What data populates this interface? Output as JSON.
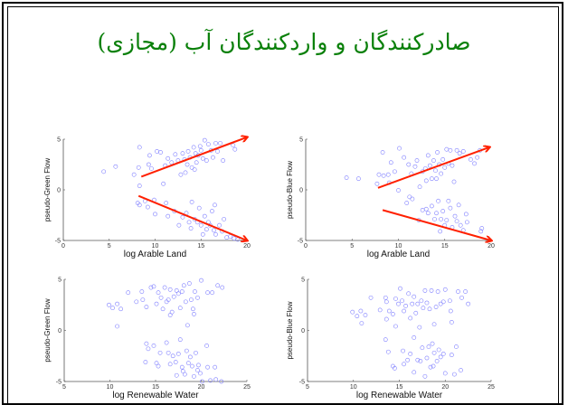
{
  "slide": {
    "title": "صادرکنندگان و واردکنندگان آب (مجازی)",
    "title_color": "#0a800a"
  },
  "chart_data": [
    {
      "type": "scatter",
      "xlabel": "log Arable Land",
      "ylabel": "pseudo-Green Flow",
      "xlim": [
        0,
        20
      ],
      "ylim": [
        -5,
        5
      ],
      "xticks": [
        0,
        5,
        10,
        15,
        20
      ],
      "yticks": [
        -5,
        0,
        5
      ],
      "marker_color": "#8080ff",
      "points": [
        [
          4.4,
          1.8
        ],
        [
          5.7,
          2.3
        ],
        [
          7.7,
          1.5
        ],
        [
          8.3,
          4.2
        ],
        [
          8.2,
          2.2
        ],
        [
          8.3,
          0.4
        ],
        [
          9.3,
          2.5
        ],
        [
          9.4,
          3.4
        ],
        [
          9.6,
          2.1
        ],
        [
          10.2,
          3.8
        ],
        [
          10.6,
          3.7
        ],
        [
          10.9,
          0.6
        ],
        [
          11.1,
          2.4
        ],
        [
          11.4,
          3.1
        ],
        [
          11.8,
          2.7
        ],
        [
          12.2,
          3.5
        ],
        [
          12.5,
          2.9
        ],
        [
          12.8,
          1.5
        ],
        [
          13,
          3.6
        ],
        [
          13.2,
          3
        ],
        [
          13.5,
          2.5
        ],
        [
          13.6,
          3.8
        ],
        [
          13.8,
          3.2
        ],
        [
          14,
          2.2
        ],
        [
          14.2,
          4.2
        ],
        [
          14.4,
          3.6
        ],
        [
          14.5,
          2.7
        ],
        [
          14.7,
          3.4
        ],
        [
          14.9,
          4.3
        ],
        [
          15,
          3.9
        ],
        [
          15.2,
          3.1
        ],
        [
          15.4,
          4.9
        ],
        [
          15.6,
          2.9
        ],
        [
          15.8,
          4.5
        ],
        [
          16.1,
          3.9
        ],
        [
          16.3,
          3.2
        ],
        [
          16.6,
          4.6
        ],
        [
          16.8,
          3.8
        ],
        [
          17.1,
          4.6
        ],
        [
          17.4,
          2.9
        ],
        [
          18.5,
          4.4
        ],
        [
          18.7,
          4
        ],
        [
          13.3,
          1.7
        ],
        [
          14.3,
          2.0
        ],
        [
          8.1,
          -1.3
        ],
        [
          8.3,
          -1.5
        ],
        [
          8.9,
          -1.1
        ],
        [
          9.2,
          -1.7
        ],
        [
          9.9,
          -1
        ],
        [
          10,
          -2.4
        ],
        [
          11.2,
          -1.3
        ],
        [
          11.4,
          -2.6
        ],
        [
          12.1,
          -2.1
        ],
        [
          12.6,
          -3.5
        ],
        [
          13,
          -2.7
        ],
        [
          13.4,
          -2.3
        ],
        [
          13.9,
          -3.8
        ],
        [
          14,
          -1.2
        ],
        [
          14.3,
          -2.9
        ],
        [
          14.6,
          -3.2
        ],
        [
          14.8,
          -1.8
        ],
        [
          15,
          -3.5
        ],
        [
          15.2,
          -4.4
        ],
        [
          15.4,
          -2.6
        ],
        [
          15.6,
          -3.9
        ],
        [
          15.8,
          -3.2
        ],
        [
          16,
          -3.5
        ],
        [
          16.2,
          -2.1
        ],
        [
          16.4,
          -4
        ],
        [
          16.6,
          -4.4
        ],
        [
          17,
          -3.5
        ],
        [
          17.3,
          -4.1
        ],
        [
          17.5,
          -2.9
        ],
        [
          17.8,
          -4.7
        ],
        [
          18.2,
          -4.6
        ],
        [
          18.6,
          -4.8
        ],
        [
          19,
          -4.9
        ],
        [
          16.5,
          -1.5
        ],
        [
          13.7,
          -3.2
        ]
      ],
      "arrows": [
        {
          "from": [
            8.5,
            1.3
          ],
          "to": [
            20,
            5.2
          ]
        },
        {
          "from": [
            8.2,
            -0.6
          ],
          "to": [
            20,
            -5
          ]
        }
      ],
      "arrow_color": "#ff2000"
    },
    {
      "type": "scatter",
      "xlabel": "log Arable Land",
      "ylabel": "pseudo-Blue Flow",
      "xlim": [
        0,
        20
      ],
      "ylim": [
        -5,
        5
      ],
      "xticks": [
        0,
        5,
        10,
        15,
        20
      ],
      "yticks": [
        -5,
        0,
        5
      ],
      "marker_color": "#8080ff",
      "points": [
        [
          4.4,
          1.2
        ],
        [
          5.7,
          1.1
        ],
        [
          7.7,
          0.6
        ],
        [
          7.9,
          1.5
        ],
        [
          8.3,
          3.7
        ],
        [
          8.4,
          1.4
        ],
        [
          8.9,
          1.5
        ],
        [
          9,
          0.7
        ],
        [
          9.2,
          2.7
        ],
        [
          9.6,
          1.8
        ],
        [
          10.1,
          4.1
        ],
        [
          10,
          -0.05
        ],
        [
          10.6,
          3.2
        ],
        [
          11.1,
          2.5
        ],
        [
          11.4,
          1.6
        ],
        [
          11.8,
          2.3
        ],
        [
          12,
          2.9
        ],
        [
          12.3,
          0.3
        ],
        [
          12.6,
          1.8
        ],
        [
          12.9,
          2.1
        ],
        [
          13.2,
          3.4
        ],
        [
          13.4,
          2.4
        ],
        [
          13.6,
          1.1
        ],
        [
          13.8,
          2.9
        ],
        [
          14,
          1.9
        ],
        [
          14.2,
          3.7
        ],
        [
          14.4,
          2.5
        ],
        [
          14.6,
          1.6
        ],
        [
          14.8,
          3
        ],
        [
          15,
          2.2
        ],
        [
          15.2,
          4
        ],
        [
          15.4,
          2.6
        ],
        [
          15.6,
          3.9
        ],
        [
          15.8,
          2.4
        ],
        [
          16,
          0.8
        ],
        [
          16.3,
          3.9
        ],
        [
          16.6,
          3.6
        ],
        [
          17,
          3.8
        ],
        [
          17.8,
          3
        ],
        [
          18.2,
          2.6
        ],
        [
          18.5,
          3.2
        ],
        [
          18.8,
          3.9
        ],
        [
          13,
          0.9
        ],
        [
          14.1,
          1.1
        ],
        [
          10.9,
          -1.3
        ],
        [
          11.2,
          -0.7
        ],
        [
          11.5,
          -0.9
        ],
        [
          12.6,
          -2
        ],
        [
          13,
          -1.9
        ],
        [
          13.2,
          -2.3
        ],
        [
          13.6,
          -1.6
        ],
        [
          13.9,
          -2.9
        ],
        [
          14.1,
          -2.3
        ],
        [
          14.3,
          -1.1
        ],
        [
          14.6,
          -2.9
        ],
        [
          14.8,
          -2.1
        ],
        [
          15,
          -3.5
        ],
        [
          15.2,
          -3
        ],
        [
          15.4,
          -1.1
        ],
        [
          15.6,
          -1.8
        ],
        [
          15.8,
          -3.7
        ],
        [
          16.1,
          -2.6
        ],
        [
          16.3,
          -3.1
        ],
        [
          16.5,
          -1.5
        ],
        [
          16.7,
          -3.5
        ],
        [
          17,
          -4
        ],
        [
          17.3,
          -2.4
        ],
        [
          17.4,
          -3.2
        ],
        [
          18.9,
          -4.1
        ],
        [
          19,
          -3.8
        ],
        [
          12.2,
          -3
        ],
        [
          14.5,
          -4.1
        ]
      ],
      "arrows": [
        {
          "from": [
            7.8,
            0.2
          ],
          "to": [
            19.8,
            4.2
          ]
        },
        {
          "from": [
            8.3,
            -2
          ],
          "to": [
            20,
            -5
          ]
        }
      ],
      "arrow_color": "#ff2000"
    },
    {
      "type": "scatter",
      "xlabel": "log Renewable Water",
      "ylabel": "pseudo-Green Flow",
      "xlim": [
        5,
        25
      ],
      "ylim": [
        -5,
        5
      ],
      "xticks": [
        5,
        10,
        15,
        20,
        25
      ],
      "yticks": [
        -5,
        0,
        5
      ],
      "marker_color": "#8080ff",
      "points": [
        [
          9.9,
          2.5
        ],
        [
          10.3,
          2.2
        ],
        [
          10.8,
          2.6
        ],
        [
          11.2,
          2.1
        ],
        [
          10.8,
          0.4
        ],
        [
          12,
          3.7
        ],
        [
          12.9,
          2.8
        ],
        [
          13.5,
          3.8
        ],
        [
          13.6,
          3
        ],
        [
          14,
          2.3
        ],
        [
          14.5,
          4.2
        ],
        [
          14.8,
          4.3
        ],
        [
          15.1,
          2.6
        ],
        [
          15.3,
          3.7
        ],
        [
          15.6,
          3.2
        ],
        [
          15.8,
          2.1
        ],
        [
          16,
          4.2
        ],
        [
          16.2,
          2.8
        ],
        [
          16.4,
          3
        ],
        [
          16.6,
          4
        ],
        [
          16.8,
          1.8
        ],
        [
          17,
          3.3
        ],
        [
          17.3,
          3.9
        ],
        [
          17.5,
          3.6
        ],
        [
          17.7,
          2.2
        ],
        [
          17.9,
          3.8
        ],
        [
          18.1,
          4.4
        ],
        [
          18.3,
          2.8
        ],
        [
          18.5,
          0.5
        ],
        [
          18.7,
          4.6
        ],
        [
          18.9,
          3
        ],
        [
          19.1,
          2.1
        ],
        [
          19.3,
          3.8
        ],
        [
          19.6,
          3.2
        ],
        [
          20,
          4.9
        ],
        [
          20.7,
          3.7
        ],
        [
          21.2,
          3.7
        ],
        [
          21.8,
          4.4
        ],
        [
          22.3,
          4.2
        ],
        [
          19.2,
          1.6
        ],
        [
          16.6,
          1.5
        ],
        [
          14,
          -1.3
        ],
        [
          14.2,
          -1.8
        ],
        [
          14.8,
          -1.5
        ],
        [
          13.9,
          -3.1
        ],
        [
          15.1,
          -3.2
        ],
        [
          15.3,
          -3.5
        ],
        [
          15.5,
          -2.2
        ],
        [
          16.2,
          -1.2
        ],
        [
          16.4,
          -2.2
        ],
        [
          16.6,
          -3.3
        ],
        [
          16.9,
          -2.5
        ],
        [
          17.2,
          -3.1
        ],
        [
          17.5,
          -2.3
        ],
        [
          17.7,
          -0.9
        ],
        [
          17.9,
          -3.6
        ],
        [
          18,
          -4
        ],
        [
          18.2,
          -4.3
        ],
        [
          18.4,
          -2
        ],
        [
          18.6,
          -3.2
        ],
        [
          18.8,
          -2.6
        ],
        [
          19,
          -3.5
        ],
        [
          19.2,
          -4.5
        ],
        [
          19.4,
          -2.2
        ],
        [
          19.6,
          -3.9
        ],
        [
          19.9,
          -4.2
        ],
        [
          20.1,
          -5
        ],
        [
          20.6,
          -1.5
        ],
        [
          20.7,
          -3.6
        ],
        [
          21,
          -4.9
        ],
        [
          21.5,
          -3.6
        ],
        [
          21.6,
          -4.8
        ],
        [
          22.2,
          -5
        ],
        [
          17.3,
          -4.4
        ],
        [
          19.7,
          -3.4
        ]
      ],
      "arrows": []
    },
    {
      "type": "scatter",
      "xlabel": "log Renewable Water",
      "ylabel": "pseudo-Blue Flow",
      "xlim": [
        5,
        25
      ],
      "ylim": [
        -5,
        5
      ],
      "xticks": [
        5,
        10,
        15,
        20,
        25
      ],
      "yticks": [
        -5,
        0,
        5
      ],
      "marker_color": "#8080ff",
      "points": [
        [
          9.9,
          1.8
        ],
        [
          10.4,
          1.4
        ],
        [
          10.8,
          1.9
        ],
        [
          10.9,
          0.7
        ],
        [
          11.3,
          1.5
        ],
        [
          11.9,
          3.2
        ],
        [
          12.9,
          2
        ],
        [
          13.5,
          3.2
        ],
        [
          13.6,
          2.8
        ],
        [
          13.6,
          1.1
        ],
        [
          13.9,
          1.9
        ],
        [
          14.3,
          1.6
        ],
        [
          14.6,
          3.1
        ],
        [
          14.6,
          0.4
        ],
        [
          14.9,
          2.6
        ],
        [
          15.1,
          4.1
        ],
        [
          15.3,
          2.9
        ],
        [
          15.5,
          1.9
        ],
        [
          15.7,
          2.4
        ],
        [
          16,
          3.6
        ],
        [
          16.2,
          1.2
        ],
        [
          16.4,
          2.6
        ],
        [
          16.6,
          3.3
        ],
        [
          16.8,
          1.7
        ],
        [
          17,
          2.6
        ],
        [
          17.2,
          0.3
        ],
        [
          17.4,
          2.9
        ],
        [
          17.6,
          2.2
        ],
        [
          17.8,
          3.9
        ],
        [
          18,
          2.7
        ],
        [
          18.3,
          2.1
        ],
        [
          18.5,
          3.9
        ],
        [
          18.8,
          0.6
        ],
        [
          19,
          2.3
        ],
        [
          19.2,
          3.8
        ],
        [
          19.5,
          2.6
        ],
        [
          19.8,
          2.8
        ],
        [
          20,
          4
        ],
        [
          20.5,
          2.9
        ],
        [
          20.7,
          0.8
        ],
        [
          21.4,
          3.8
        ],
        [
          21.8,
          3.2
        ],
        [
          22.2,
          3.8
        ],
        [
          22.5,
          2.6
        ],
        [
          20.6,
          1.9
        ],
        [
          13.5,
          -0.9
        ],
        [
          13.8,
          -2.1
        ],
        [
          14.3,
          -3.5
        ],
        [
          14.5,
          -3.7
        ],
        [
          15.4,
          -2
        ],
        [
          15.5,
          -3.3
        ],
        [
          15.9,
          -2.9
        ],
        [
          16.2,
          -2.3
        ],
        [
          16.6,
          -0.7
        ],
        [
          16.6,
          -4.1
        ],
        [
          17,
          -2.9
        ],
        [
          17.3,
          -3
        ],
        [
          17.5,
          -1.7
        ],
        [
          17.8,
          -4.5
        ],
        [
          18,
          -2.7
        ],
        [
          18.2,
          -1.6
        ],
        [
          18.4,
          -3.6
        ],
        [
          18.6,
          -1.3
        ],
        [
          18.8,
          -2.2
        ],
        [
          19.1,
          -3
        ],
        [
          19.3,
          -1.9
        ],
        [
          19.5,
          -2.6
        ],
        [
          19.8,
          -2.3
        ],
        [
          20,
          -4.2
        ],
        [
          20.7,
          -2.4
        ],
        [
          21,
          -4.3
        ],
        [
          21.2,
          -1.6
        ],
        [
          21.7,
          -3.9
        ],
        [
          18.7,
          -3.5
        ]
      ],
      "arrows": []
    }
  ]
}
